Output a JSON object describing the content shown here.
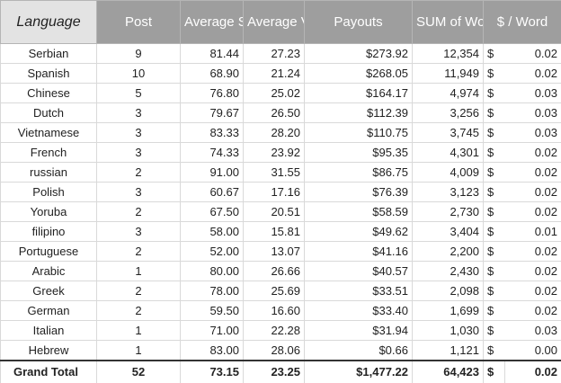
{
  "table": {
    "headers": [
      "Language",
      "Post",
      "Average Scores",
      "Average Voting",
      "Payouts",
      "SUM of Words",
      "$ / Word"
    ],
    "rows": [
      [
        "Serbian",
        "9",
        "81.44",
        "27.23",
        "$273.92",
        "12,354",
        "$",
        "0.02"
      ],
      [
        "Spanish",
        "10",
        "68.90",
        "21.24",
        "$268.05",
        "11,949",
        "$",
        "0.02"
      ],
      [
        "Chinese",
        "5",
        "76.80",
        "25.02",
        "$164.17",
        "4,974",
        "$",
        "0.03"
      ],
      [
        "Dutch",
        "3",
        "79.67",
        "26.50",
        "$112.39",
        "3,256",
        "$",
        "0.03"
      ],
      [
        "Vietnamese",
        "3",
        "83.33",
        "28.20",
        "$110.75",
        "3,745",
        "$",
        "0.03"
      ],
      [
        "French",
        "3",
        "74.33",
        "23.92",
        "$95.35",
        "4,301",
        "$",
        "0.02"
      ],
      [
        "russian",
        "2",
        "91.00",
        "31.55",
        "$86.75",
        "4,009",
        "$",
        "0.02"
      ],
      [
        "Polish",
        "3",
        "60.67",
        "17.16",
        "$76.39",
        "3,123",
        "$",
        "0.02"
      ],
      [
        "Yoruba",
        "2",
        "67.50",
        "20.51",
        "$58.59",
        "2,730",
        "$",
        "0.02"
      ],
      [
        "filipino",
        "3",
        "58.00",
        "15.81",
        "$49.62",
        "3,404",
        "$",
        "0.01"
      ],
      [
        "Portuguese",
        "2",
        "52.00",
        "13.07",
        "$41.16",
        "2,200",
        "$",
        "0.02"
      ],
      [
        "Arabic",
        "1",
        "80.00",
        "26.66",
        "$40.57",
        "2,430",
        "$",
        "0.02"
      ],
      [
        "Greek",
        "2",
        "78.00",
        "25.69",
        "$33.51",
        "2,098",
        "$",
        "0.02"
      ],
      [
        "German",
        "2",
        "59.50",
        "16.60",
        "$33.40",
        "1,699",
        "$",
        "0.02"
      ],
      [
        "Italian",
        "1",
        "71.00",
        "22.28",
        "$31.94",
        "1,030",
        "$",
        "0.03"
      ],
      [
        "Hebrew",
        "1",
        "83.00",
        "28.06",
        "$0.66",
        "1,121",
        "$",
        "0.00"
      ]
    ],
    "total": [
      "Grand Total",
      "52",
      "73.15",
      "23.25",
      "$1,477.22",
      "64,423",
      "$",
      "0.02"
    ]
  }
}
